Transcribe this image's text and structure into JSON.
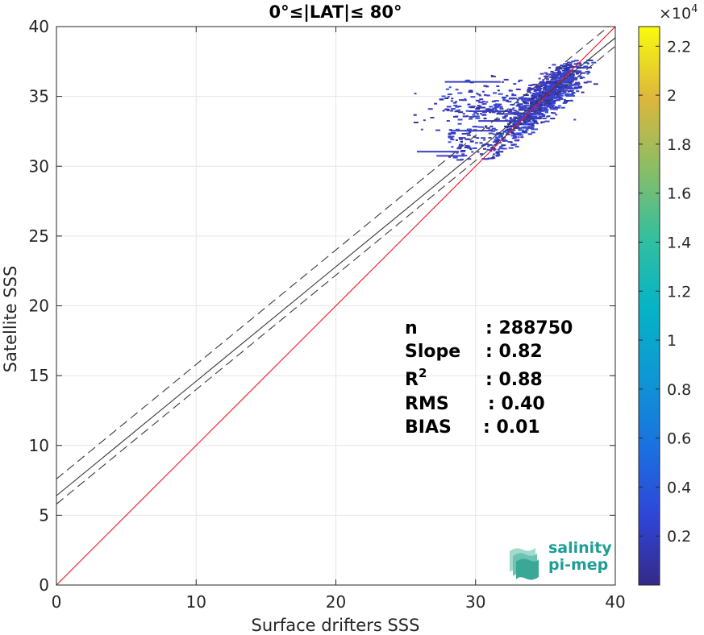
{
  "chart_data": {
    "type": "scatter",
    "title": "0°≤|LAT|≤ 80°",
    "xlabel": "Surface drifters SSS",
    "ylabel": "Satellite SSS",
    "xlim": [
      0,
      40
    ],
    "ylim": [
      0,
      40
    ],
    "xticks": [
      "0",
      "10",
      "20",
      "30",
      "40"
    ],
    "yticks": [
      "0",
      "5",
      "10",
      "15",
      "20",
      "25",
      "30",
      "35",
      "40"
    ],
    "grid": true,
    "density_cloud": {
      "x_range": [
        25.5,
        38.5
      ],
      "y_range": [
        30.5,
        37.7
      ],
      "colormap": "parula"
    },
    "lines": [
      {
        "name": "identity",
        "slope": 1,
        "intercept": 0,
        "color": "#e8141c",
        "style": "solid"
      },
      {
        "name": "regression",
        "slope": 0.82,
        "intercept": 6.4,
        "color": "#3a3a3a",
        "style": "solid"
      },
      {
        "name": "regression-upper",
        "slope": 0.82,
        "intercept": 7.6,
        "color": "#3a3a3a",
        "style": "dashed"
      },
      {
        "name": "regression-lower",
        "slope": 0.82,
        "intercept": 5.8,
        "color": "#3a3a3a",
        "style": "dashed"
      }
    ],
    "stats": [
      {
        "label": "n",
        "sep": ": 288750"
      },
      {
        "label": "Slope",
        "sep": ": 0.82"
      },
      {
        "label": "R",
        "sup": "2",
        "sep": ": 0.88"
      },
      {
        "label": "RMS",
        "sep": ": 0.40"
      },
      {
        "label": "BIAS",
        "sep": ": 0.01"
      }
    ],
    "colorbar": {
      "multiplier": "×10",
      "exponent": "4",
      "ticks": [
        "0.2",
        "0.4",
        "0.6",
        "0.8",
        "1",
        "1.2",
        "1.4",
        "1.6",
        "1.8",
        "2",
        "2.2"
      ],
      "tick_values": [
        0.2,
        0.4,
        0.6,
        0.8,
        1.0,
        1.2,
        1.4,
        1.6,
        1.8,
        2.0,
        2.2
      ],
      "range": [
        0,
        2.28
      ]
    }
  },
  "logo": {
    "line1": "salinity",
    "line2": "pi-mep"
  }
}
